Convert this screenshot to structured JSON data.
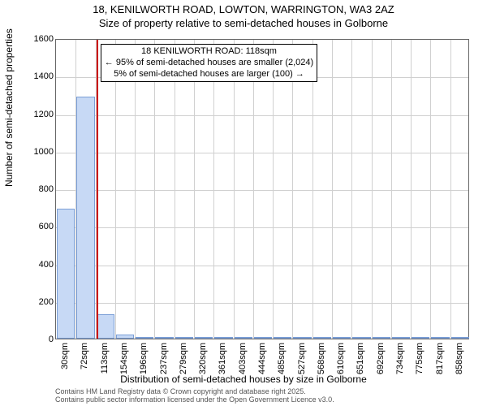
{
  "title_line1": "18, KENILWORTH ROAD, LOWTON, WARRINGTON, WA3 2AZ",
  "title_line2": "Size of property relative to semi-detached houses in Golborne",
  "chart": {
    "type": "histogram",
    "ylabel": "Number of semi-detached properties",
    "xlabel": "Distribution of semi-detached houses by size in Golborne",
    "ylim": [
      0,
      1600
    ],
    "yticks": [
      0,
      200,
      400,
      600,
      800,
      1000,
      1200,
      1400,
      1600
    ],
    "xticks": [
      "30sqm",
      "72sqm",
      "113sqm",
      "154sqm",
      "196sqm",
      "237sqm",
      "279sqm",
      "320sqm",
      "361sqm",
      "403sqm",
      "444sqm",
      "485sqm",
      "527sqm",
      "568sqm",
      "610sqm",
      "651sqm",
      "692sqm",
      "734sqm",
      "775sqm",
      "817sqm",
      "858sqm"
    ],
    "bars": [
      690,
      1290,
      130,
      20,
      8,
      5,
      3,
      2,
      2,
      1,
      1,
      1,
      1,
      1,
      1,
      1,
      1,
      1,
      1,
      1,
      1
    ],
    "bar_fill": "#c7d9f5",
    "bar_stroke": "#7a9ed6",
    "grid_color": "#d0d0d0",
    "background_color": "#ffffff",
    "ref_line_index": 2.05,
    "ref_line_color": "#cc0000"
  },
  "annotation": {
    "line1": "18 KENILWORTH ROAD: 118sqm",
    "line2": "← 95% of semi-detached houses are smaller (2,024)",
    "line3": "5% of semi-detached houses are larger (100) →"
  },
  "footer_line1": "Contains HM Land Registry data © Crown copyright and database right 2025.",
  "footer_line2": "Contains public sector information licensed under the Open Government Licence v3.0."
}
